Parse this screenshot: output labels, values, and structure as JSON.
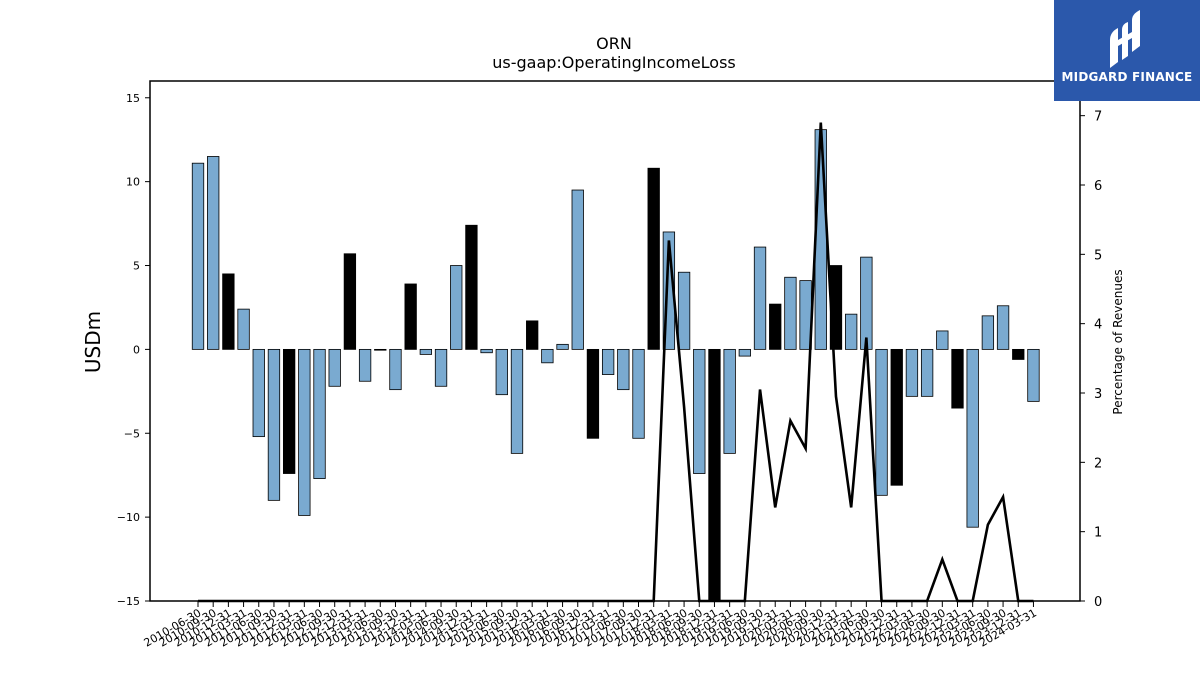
{
  "chart_data": {
    "type": "bar",
    "title": "ORN",
    "subtitle": "us-gaap:OperatingIncomeLoss",
    "ylabel": "USDm",
    "y2label": "Percentage of Revenues",
    "ylim": [
      -15,
      16
    ],
    "yticks": [
      -15,
      -10,
      -5,
      0,
      5,
      10,
      15
    ],
    "y2lim": [
      0,
      7.5
    ],
    "y2ticks": [
      0,
      1,
      2,
      3,
      4,
      5,
      6,
      7
    ],
    "xtick_labels": [
      "2010-06-30",
      "2010-09-30",
      "2010-12-31",
      "2011-03-31",
      "2011-06-30",
      "2011-09-30",
      "2011-12-31",
      "2012-03-31",
      "2012-06-30",
      "2012-09-30",
      "2012-12-31",
      "2013-03-31",
      "2013-06-30",
      "2013-09-30",
      "2013-12-31",
      "2014-03-31",
      "2014-06-30",
      "2014-09-30",
      "2014-12-31",
      "2015-03-31",
      "2015-06-30",
      "2015-09-30",
      "2015-12-31",
      "2016-03-31",
      "2016-06-30",
      "2016-09-30",
      "2016-12-31",
      "2017-03-31",
      "2017-06-30",
      "2017-09-30",
      "2017-12-31",
      "2018-03-31",
      "2018-06-30",
      "2018-09-30",
      "2018-12-31",
      "2019-03-31",
      "2019-06-30",
      "2019-09-30",
      "2019-12-31",
      "2020-03-31",
      "2020-06-30",
      "2020-09-30",
      "2020-12-31",
      "2021-03-31",
      "2021-06-30",
      "2021-09-30",
      "2021-12-31",
      "2022-03-31",
      "2022-06-30",
      "2022-09-30",
      "2022-12-31",
      "2023-03-31",
      "2023-06-30",
      "2023-09-30",
      "2023-12-31",
      "2024-03-31"
    ],
    "series": [
      {
        "values": [
          11.1,
          11.5,
          4.5,
          2.4,
          -5.2,
          -9.0,
          -7.4,
          -9.9,
          -7.7,
          -2.2,
          5.7,
          -1.9,
          0.0,
          -2.4,
          3.9,
          -0.3,
          -2.2,
          5.0,
          7.4,
          -0.2,
          -2.7,
          -6.2,
          1.7,
          -0.8,
          0.3,
          9.5,
          -5.3,
          -1.5,
          -2.4,
          -5.3,
          10.8,
          7.0,
          4.6,
          -7.4,
          -15.0,
          -6.2,
          -0.4,
          6.1,
          2.7,
          4.3,
          4.1,
          13.1,
          5.0,
          2.1,
          5.5,
          -8.7,
          -8.1,
          -2.8,
          -2.8,
          1.1,
          -3.5,
          -10.6,
          2.0,
          2.6,
          -0.6,
          -3.1
        ],
        "colors": [
          "#7aaad0",
          "#7aaad0",
          "#000000",
          "#7aaad0",
          "#7aaad0",
          "#7aaad0",
          "#000000",
          "#7aaad0",
          "#7aaad0",
          "#7aaad0",
          "#000000",
          "#7aaad0",
          "#7aaad0",
          "#7aaad0",
          "#000000",
          "#7aaad0",
          "#7aaad0",
          "#7aaad0",
          "#000000",
          "#7aaad0",
          "#7aaad0",
          "#7aaad0",
          "#000000",
          "#7aaad0",
          "#7aaad0",
          "#7aaad0",
          "#000000",
          "#7aaad0",
          "#7aaad0",
          "#7aaad0",
          "#000000",
          "#7aaad0",
          "#7aaad0",
          "#7aaad0",
          "#000000",
          "#7aaad0",
          "#7aaad0",
          "#7aaad0",
          "#000000",
          "#7aaad0",
          "#7aaad0",
          "#7aaad0",
          "#000000",
          "#7aaad0",
          "#7aaad0",
          "#7aaad0",
          "#000000",
          "#7aaad0",
          "#7aaad0",
          "#7aaad0",
          "#000000",
          "#7aaad0",
          "#7aaad0",
          "#7aaad0",
          "#000000",
          "#7aaad0"
        ]
      },
      {
        "type": "line",
        "axis": "right",
        "values": [
          0,
          0,
          0,
          0,
          0,
          0,
          0,
          0,
          0,
          0,
          0,
          0,
          0,
          0,
          0,
          0,
          0,
          0,
          0,
          0,
          0,
          0,
          0,
          0,
          0,
          0,
          0,
          0,
          0,
          0,
          0,
          5.2,
          2.8,
          0,
          0,
          0,
          0,
          3.05,
          1.35,
          2.6,
          2.2,
          6.9,
          2.95,
          1.35,
          3.8,
          0,
          0,
          0,
          0,
          0.6,
          0,
          0,
          1.1,
          1.5,
          0,
          0
        ]
      }
    ],
    "grid": false,
    "legend": "none"
  },
  "logo": {
    "text": "MIDGARD FINANCE",
    "color": "#2b58ab"
  }
}
